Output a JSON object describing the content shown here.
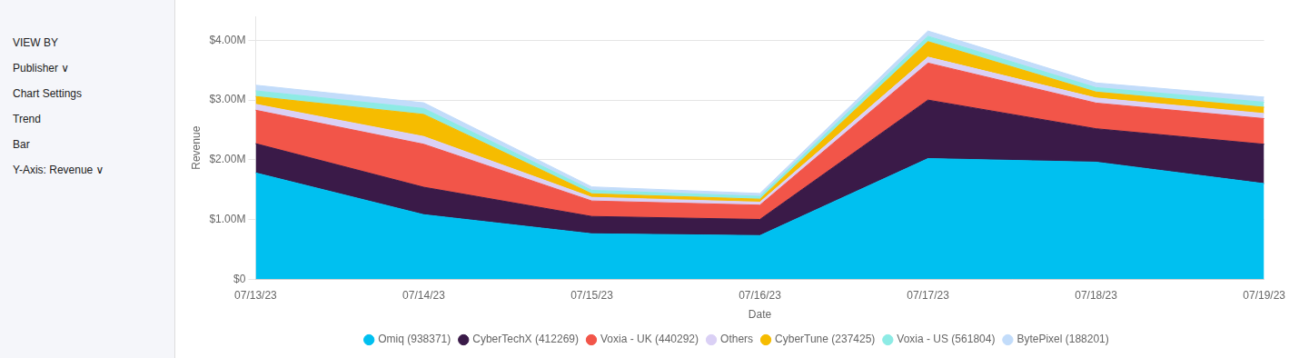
{
  "chart_data": {
    "type": "area",
    "stacked": true,
    "categories": [
      "07/13/23",
      "07/14/23",
      "07/15/23",
      "07/16/23",
      "07/17/23",
      "07/18/23",
      "07/19/23"
    ],
    "series": [
      {
        "name": "Omiq (938371)",
        "color": "#00C0F0",
        "values": [
          1780000,
          1080000,
          760000,
          730000,
          2020000,
          1960000,
          1600000
        ]
      },
      {
        "name": "CyberTechX (412269)",
        "color": "#3A1A48",
        "values": [
          490000,
          460000,
          290000,
          270000,
          980000,
          560000,
          660000
        ]
      },
      {
        "name": "Voxia - UK (440292)",
        "color": "#F25549",
        "values": [
          560000,
          720000,
          260000,
          240000,
          620000,
          430000,
          430000
        ]
      },
      {
        "name": "Others",
        "color": "#DAD0F5",
        "values": [
          100000,
          130000,
          60000,
          50000,
          100000,
          85000,
          85000
        ]
      },
      {
        "name": "CyberTune (237425)",
        "color": "#F6BC00",
        "values": [
          130000,
          370000,
          60000,
          50000,
          260000,
          100000,
          105000
        ]
      },
      {
        "name": "Voxia - US (561804)",
        "color": "#8DEBE5",
        "values": [
          95000,
          100000,
          58000,
          48000,
          90000,
          75000,
          85000
        ]
      },
      {
        "name": "BytePixel (188201)",
        "color": "#C2DCFA",
        "values": [
          95000,
          95000,
          58000,
          48000,
          88000,
          78000,
          85000
        ]
      }
    ],
    "xlabel": "Date",
    "ylabel": "Revenue",
    "ylim": [
      0,
      4400000
    ],
    "yticks": [
      {
        "value": 0,
        "label": "$0"
      },
      {
        "value": 1000000,
        "label": "$1.00M"
      },
      {
        "value": 2000000,
        "label": "$2.00M"
      },
      {
        "value": 3000000,
        "label": "$3.00M"
      },
      {
        "value": 4000000,
        "label": "$4.00M"
      }
    ],
    "grid": "y",
    "legend": "bottom",
    "annotations": [
      "VIEW BY",
      "Publisher ∨",
      "Chart Settings",
      "Trend",
      "Bar",
      "Y-Axis: Revenue ∨"
    ]
  }
}
